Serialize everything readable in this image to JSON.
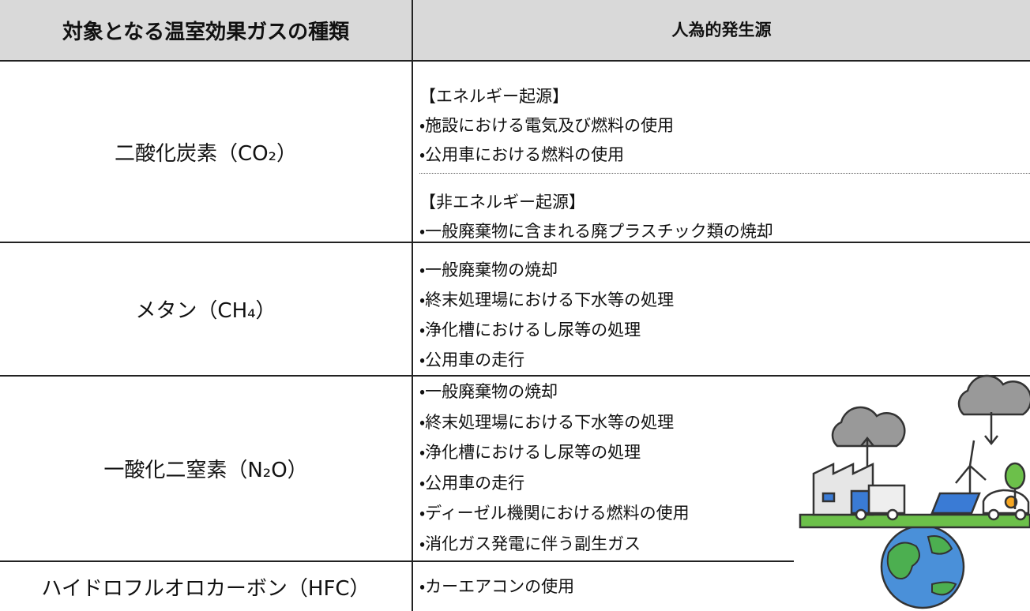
{
  "table": {
    "header": [
      "対象となる温室効果ガスの種類",
      "人為的発生源"
    ],
    "rows": [
      {
        "gas": "二酸化炭素（CO₂）",
        "groups": [
          {
            "heading": "【エネルギー起源】",
            "items": [
              "・施設における電気及び燃料の使用",
              "・公用車における燃料の使用"
            ]
          },
          {
            "heading": "【非エネルギー起源】",
            "items": [
              "・一般廃棄物に含まれる廃プラスチック類の焼却"
            ]
          }
        ]
      },
      {
        "gas": "メタン（CH₄）",
        "groups": [
          {
            "items": [
              "・一般廃棄物の焼却",
              "・終末処理場における下水等の処理",
              "・浄化槽におけるし尿等の処理",
              "・公用車の走行"
            ]
          }
        ]
      },
      {
        "gas": "一酸化二窒素（N₂O）",
        "groups": [
          {
            "items": [
              "・一般廃棄物の焼却",
              "・終末処理場における下水等の処理",
              "・浄化槽におけるし尿等の処理",
              "・公用車の走行",
              "・ディーゼル機関における燃料の使用",
              "・消化ガス発電に伴う副生ガス"
            ]
          }
        ]
      },
      {
        "gas": "ハイドロフルオロカーボン（HFC）",
        "groups": [
          {
            "items": [
              "・カーエアコンの使用"
            ]
          }
        ]
      }
    ]
  }
}
